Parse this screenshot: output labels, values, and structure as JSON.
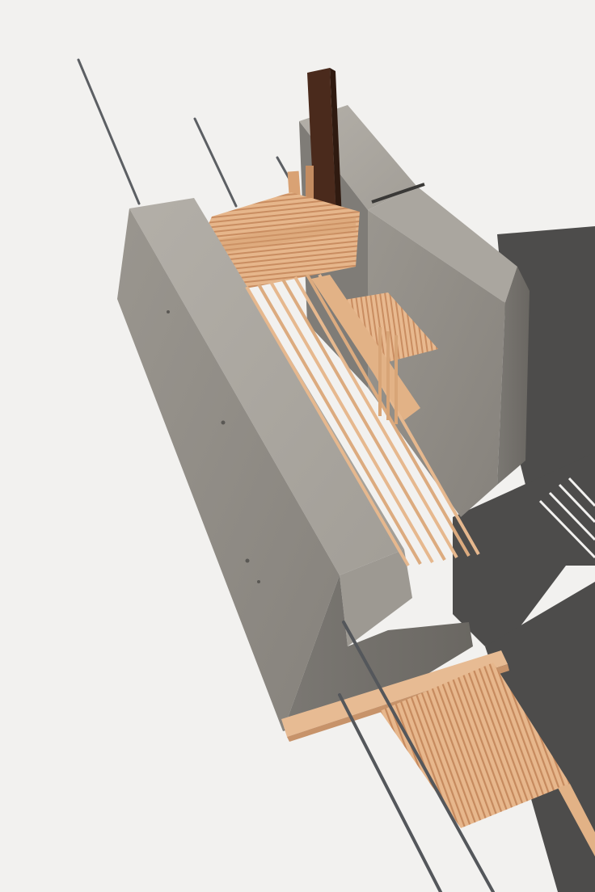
{
  "scene": {
    "subject": "architectural-model",
    "colors": {
      "background": "#f2f1ef",
      "concrete_top": "#a9a59e",
      "concrete_face": "#8f8b85",
      "concrete_dark": "#6f6c67",
      "wood_light": "#e8b98f",
      "wood_mid": "#d9a274",
      "wood_dark": "#b9835a",
      "dark_post": "#4a2a1c",
      "rod": "#5c5f63",
      "shadow": "#4d4c4b"
    }
  }
}
